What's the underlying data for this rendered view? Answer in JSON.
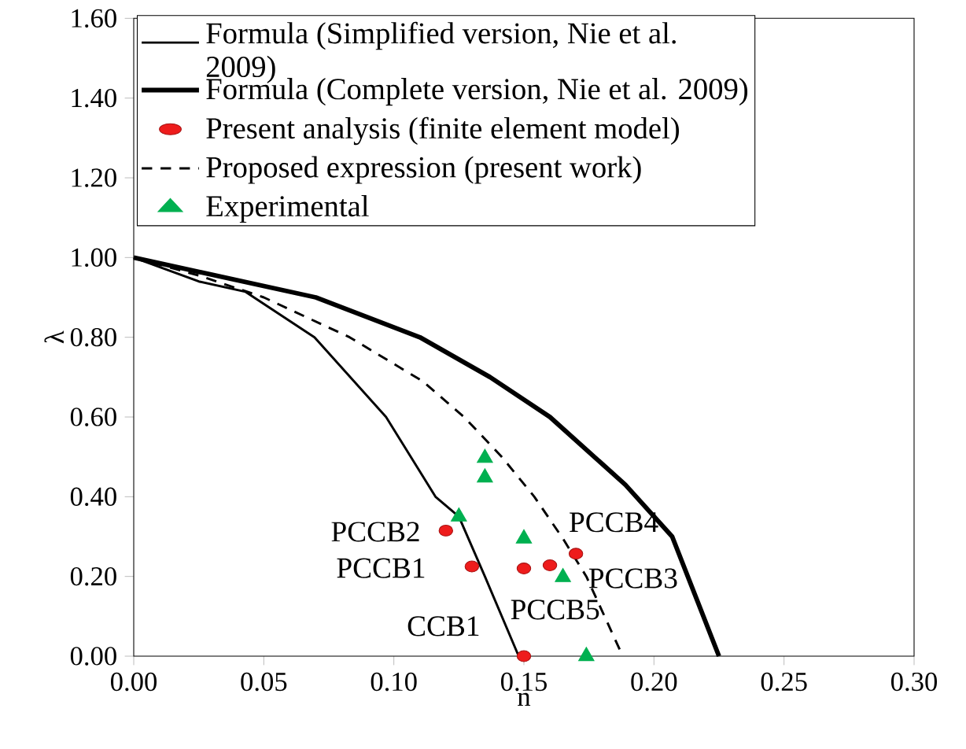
{
  "chart_data": {
    "type": "line",
    "xlabel": "n",
    "ylabel": "λ",
    "xlim": [
      0,
      0.3
    ],
    "ylim": [
      0,
      1.6
    ],
    "xticks": [
      {
        "value": 0,
        "label": "0.00"
      },
      {
        "value": 0.05,
        "label": "0.05"
      },
      {
        "value": 0.1,
        "label": "0.10"
      },
      {
        "value": 0.15,
        "label": "0.15"
      },
      {
        "value": 0.2,
        "label": "0.20"
      },
      {
        "value": 0.25,
        "label": "0.25"
      },
      {
        "value": 0.3,
        "label": "0.30"
      }
    ],
    "yticks": [
      {
        "value": 0,
        "label": "0.00"
      },
      {
        "value": 0.2,
        "label": "0.20"
      },
      {
        "value": 0.4,
        "label": "0.40"
      },
      {
        "value": 0.6,
        "label": "0.60"
      },
      {
        "value": 0.8,
        "label": "0.80"
      },
      {
        "value": 1.0,
        "label": "1.00"
      },
      {
        "value": 1.2,
        "label": "1.20"
      },
      {
        "value": 1.4,
        "label": "1.40"
      },
      {
        "value": 1.6,
        "label": "1.60"
      }
    ],
    "legend": "top left",
    "grid": false,
    "series": [
      {
        "name": "Formula (Simplified version, Nie et al. 2009)",
        "color": "#000000",
        "line_style": "solid",
        "marker": "none",
        "x": [
          0,
          0.025,
          0.043,
          0.0695,
          0.097,
          0.116,
          0.125,
          0.135,
          0.148
        ],
        "values": [
          1.0,
          0.94,
          0.914,
          0.8,
          0.6,
          0.4,
          0.35,
          0.2,
          0.0
        ]
      },
      {
        "name": "Formula (Complete version, Nie et al. 2009)",
        "color": "#000000",
        "line_style": "solid",
        "marker": "none",
        "x": [
          0,
          0.07,
          0.11,
          0.137,
          0.16,
          0.189,
          0.207,
          0.225
        ],
        "values": [
          1.0,
          0.9,
          0.8,
          0.7,
          0.6,
          0.43,
          0.3,
          0.0
        ]
      },
      {
        "name": "Present analysis (finite element model)",
        "type": "scatter",
        "color": "#ee1c1c",
        "marker": "circle",
        "x": [
          0.12,
          0.13,
          0.15,
          0.16,
          0.17,
          0.15
        ],
        "values": [
          0.315,
          0.225,
          0.22,
          0.228,
          0.257,
          0.0
        ]
      },
      {
        "name": "Proposed expression (present work)",
        "color": "#000000",
        "line_style": "dashed",
        "marker": "none",
        "x": [
          0,
          0.025,
          0.05,
          0.083,
          0.111,
          0.127,
          0.1415,
          0.154,
          0.165,
          0.174,
          0.188
        ],
        "values": [
          1.0,
          0.955,
          0.9,
          0.8,
          0.69,
          0.6,
          0.5,
          0.4,
          0.295,
          0.2,
          0.0
        ]
      },
      {
        "name": "Experimental",
        "type": "scatter",
        "color": "#00b050",
        "marker": "triangle",
        "x": [
          0.135,
          0.135,
          0.125,
          0.15,
          0.165,
          0.174
        ],
        "values": [
          0.497,
          0.448,
          0.35,
          0.295,
          0.198,
          0.0
        ]
      }
    ],
    "annotations": [
      "PCCB2",
      "PCCB1",
      "CCB1",
      "PCCB5",
      "PCCB3",
      "PCCB4"
    ]
  }
}
